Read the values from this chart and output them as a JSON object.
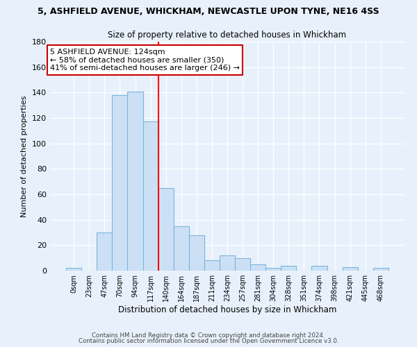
{
  "title1": "5, ASHFIELD AVENUE, WHICKHAM, NEWCASTLE UPON TYNE, NE16 4SS",
  "title2": "Size of property relative to detached houses in Whickham",
  "xlabel": "Distribution of detached houses by size in Whickham",
  "ylabel": "Number of detached properties",
  "footer1": "Contains HM Land Registry data © Crown copyright and database right 2024.",
  "footer2": "Contains public sector information licensed under the Open Government Licence v3.0.",
  "bar_labels": [
    "0sqm",
    "23sqm",
    "47sqm",
    "70sqm",
    "94sqm",
    "117sqm",
    "140sqm",
    "164sqm",
    "187sqm",
    "211sqm",
    "234sqm",
    "257sqm",
    "281sqm",
    "304sqm",
    "328sqm",
    "351sqm",
    "374sqm",
    "398sqm",
    "421sqm",
    "445sqm",
    "468sqm"
  ],
  "bar_values": [
    2,
    0,
    30,
    138,
    141,
    117,
    65,
    35,
    28,
    8,
    12,
    10,
    5,
    2,
    4,
    0,
    4,
    0,
    3,
    0,
    2
  ],
  "bar_color": "#cce0f5",
  "bar_edge_color": "#7ab5dc",
  "vline_x": 5.5,
  "vline_color": "red",
  "annotation_title": "5 ASHFIELD AVENUE: 124sqm",
  "annotation_line1": "← 58% of detached houses are smaller (350)",
  "annotation_line2": "41% of semi-detached houses are larger (246) →",
  "annotation_box_color": "#ffffff",
  "annotation_box_edge": "#cc0000",
  "background_color": "#e8f1fb",
  "ylim": [
    0,
    180
  ],
  "yticks": [
    0,
    20,
    40,
    60,
    80,
    100,
    120,
    140,
    160,
    180
  ],
  "title1_fontsize": 9.0,
  "title2_fontsize": 8.5
}
